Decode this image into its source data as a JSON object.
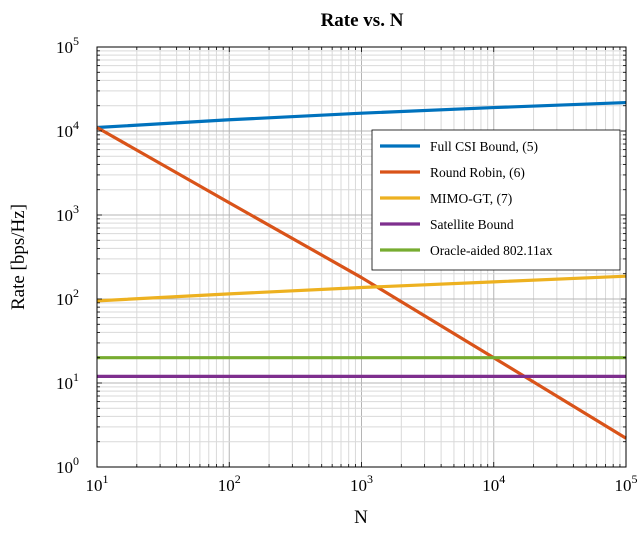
{
  "chart_data": {
    "type": "line",
    "title": "Rate vs. N",
    "xlabel": "N",
    "ylabel": "Rate [bps/Hz]",
    "xscale": "log",
    "yscale": "log",
    "xlim": [
      10,
      100000
    ],
    "ylim": [
      1,
      100000
    ],
    "x_ticks": [
      {
        "base": "10",
        "exp": "1",
        "value": 10
      },
      {
        "base": "10",
        "exp": "2",
        "value": 100
      },
      {
        "base": "10",
        "exp": "3",
        "value": 1000
      },
      {
        "base": "10",
        "exp": "4",
        "value": 10000
      },
      {
        "base": "10",
        "exp": "5",
        "value": 100000
      }
    ],
    "y_ticks": [
      {
        "base": "10",
        "exp": "0",
        "value": 1
      },
      {
        "base": "10",
        "exp": "1",
        "value": 10
      },
      {
        "base": "10",
        "exp": "2",
        "value": 100
      },
      {
        "base": "10",
        "exp": "3",
        "value": 1000
      },
      {
        "base": "10",
        "exp": "4",
        "value": 10000
      },
      {
        "base": "10",
        "exp": "5",
        "value": 100000
      }
    ],
    "grid": true,
    "legend_position": "top-right",
    "series": [
      {
        "name": "Full CSI Bound, (5)",
        "color": "#0072bd",
        "x": [
          10,
          100,
          1000,
          10000,
          100000
        ],
        "y": [
          11000,
          13600,
          16300,
          19000,
          21800
        ]
      },
      {
        "name": "Round Robin, (6)",
        "color": "#d95319",
        "x": [
          10,
          100,
          1000,
          10000,
          100000
        ],
        "y": [
          11000,
          1400,
          180,
          20,
          2.2
        ]
      },
      {
        "name": "MIMO-GT, (7)",
        "color": "#edb120",
        "x": [
          10,
          100,
          1000,
          10000,
          100000
        ],
        "y": [
          95,
          115,
          137,
          160,
          187
        ]
      },
      {
        "name": "Satellite Bound",
        "color": "#7e2f8e",
        "x": [
          10,
          100000
        ],
        "y": [
          12,
          12
        ]
      },
      {
        "name": "Oracle-aided 802.11ax",
        "color": "#77ac30",
        "x": [
          10,
          100000
        ],
        "y": [
          20,
          20
        ]
      }
    ]
  }
}
